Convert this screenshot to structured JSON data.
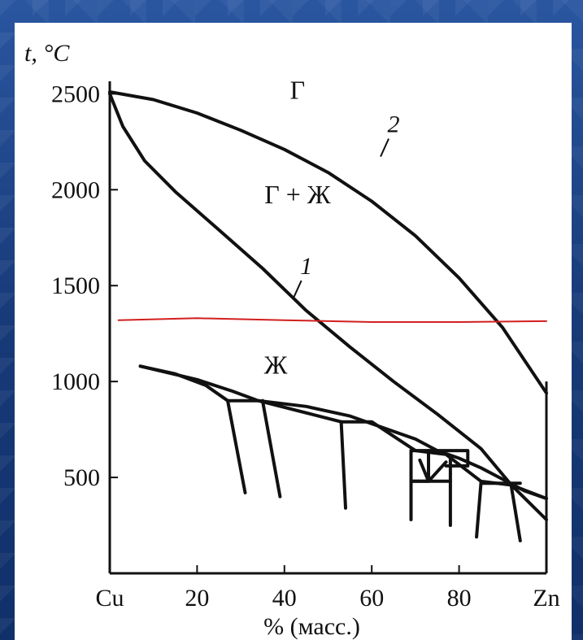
{
  "slide": {
    "accent_color": "#1a3f7f",
    "panel_color": "#ffffff"
  },
  "chart_data": {
    "type": "line",
    "title": "",
    "xlabel": "% (масс.)",
    "ylabel": "t, °C",
    "x_tick_labels": [
      "Cu",
      "20",
      "40",
      "60",
      "80",
      "Zn"
    ],
    "x_ticks": [
      0,
      20,
      40,
      60,
      80,
      100
    ],
    "y_ticks": [
      500,
      1000,
      1500,
      2000,
      2500
    ],
    "y_tick_labels": [
      "500",
      "1000",
      "1500",
      "2000",
      "2500"
    ],
    "xlim": [
      0,
      100
    ],
    "ylim": [
      0,
      2650
    ],
    "grid": false,
    "region_labels": [
      {
        "text": "Г",
        "x": 43,
        "y": 2475
      },
      {
        "text": "Г + Ж",
        "x": 43,
        "y": 1930
      },
      {
        "text": "Ж",
        "x": 38,
        "y": 1040
      }
    ],
    "curve_labels": [
      {
        "text": "2",
        "x": 65,
        "y": 2300
      },
      {
        "text": "1",
        "x": 45,
        "y": 1560
      }
    ],
    "series": [
      {
        "id": "curve-2",
        "color": "#111111",
        "points": [
          [
            0,
            2510
          ],
          [
            10,
            2470
          ],
          [
            20,
            2400
          ],
          [
            30,
            2310
          ],
          [
            40,
            2210
          ],
          [
            50,
            2090
          ],
          [
            60,
            1940
          ],
          [
            70,
            1760
          ],
          [
            80,
            1540
          ],
          [
            90,
            1280
          ],
          [
            100,
            940
          ]
        ]
      },
      {
        "id": "curve-1",
        "color": "#111111",
        "points": [
          [
            0,
            2500
          ],
          [
            3,
            2330
          ],
          [
            8,
            2150
          ],
          [
            15,
            1990
          ],
          [
            25,
            1790
          ],
          [
            35,
            1590
          ],
          [
            45,
            1370
          ],
          [
            55,
            1180
          ],
          [
            65,
            1000
          ],
          [
            75,
            830
          ],
          [
            85,
            650
          ],
          [
            92,
            460
          ],
          [
            100,
            280
          ]
        ]
      },
      {
        "id": "red-line",
        "color": "#d21f1f",
        "points": [
          [
            2,
            1320
          ],
          [
            20,
            1330
          ],
          [
            40,
            1320
          ],
          [
            60,
            1310
          ],
          [
            80,
            1310
          ],
          [
            100,
            1315
          ]
        ]
      },
      {
        "id": "phase-liquidus",
        "color": "#111111",
        "points": [
          [
            7,
            1080
          ],
          [
            20,
            1010
          ],
          [
            28,
            950
          ],
          [
            34,
            900
          ],
          [
            45,
            870
          ],
          [
            55,
            820
          ],
          [
            65,
            740
          ],
          [
            70,
            700
          ],
          [
            75,
            640
          ],
          [
            80,
            600
          ],
          [
            85,
            550
          ],
          [
            90,
            490
          ],
          [
            95,
            430
          ],
          [
            100,
            390
          ]
        ]
      },
      {
        "id": "phase-solidus",
        "color": "#111111",
        "points": [
          [
            7,
            1080
          ],
          [
            15,
            1040
          ],
          [
            22,
            980
          ],
          [
            27,
            900
          ],
          [
            34,
            900
          ],
          [
            53,
            790
          ],
          [
            60,
            790
          ],
          [
            70,
            640
          ],
          [
            77,
            620
          ],
          [
            85,
            480
          ],
          [
            92,
            460
          ],
          [
            100,
            390
          ]
        ]
      },
      {
        "id": "phase-line-1",
        "color": "#111111",
        "points": [
          [
            27,
            900
          ],
          [
            31,
            420
          ]
        ]
      },
      {
        "id": "phase-line-2",
        "color": "#111111",
        "points": [
          [
            35,
            900
          ],
          [
            39,
            400
          ]
        ]
      },
      {
        "id": "phase-line-3",
        "color": "#111111",
        "points": [
          [
            53,
            790
          ],
          [
            54,
            340
          ]
        ]
      },
      {
        "id": "phase-line-4",
        "color": "#111111",
        "points": [
          [
            69,
            640
          ],
          [
            69,
            280
          ]
        ]
      },
      {
        "id": "phase-line-5",
        "color": "#111111",
        "points": [
          [
            78,
            610
          ],
          [
            78,
            250
          ]
        ]
      },
      {
        "id": "phase-line-6",
        "color": "#111111",
        "points": [
          [
            85,
            470
          ],
          [
            84,
            190
          ]
        ]
      },
      {
        "id": "phase-line-7",
        "color": "#111111",
        "points": [
          [
            92,
            450
          ],
          [
            94,
            170
          ]
        ]
      },
      {
        "id": "phase-box-1",
        "color": "#111111",
        "points": [
          [
            69,
            640
          ],
          [
            73,
            640
          ],
          [
            73,
            480
          ],
          [
            69,
            480
          ]
        ]
      },
      {
        "id": "phase-box-2",
        "color": "#111111",
        "points": [
          [
            73,
            640
          ],
          [
            82,
            640
          ],
          [
            82,
            560
          ],
          [
            77,
            560
          ]
        ]
      },
      {
        "id": "phase-notch",
        "color": "#111111",
        "points": [
          [
            71,
            590
          ],
          [
            73,
            480
          ],
          [
            77,
            580
          ]
        ]
      },
      {
        "id": "phase-shelf-1",
        "color": "#111111",
        "points": [
          [
            69,
            480
          ],
          [
            78,
            480
          ]
        ]
      },
      {
        "id": "phase-shelf-2",
        "color": "#111111",
        "points": [
          [
            85,
            470
          ],
          [
            94,
            470
          ]
        ]
      }
    ]
  }
}
